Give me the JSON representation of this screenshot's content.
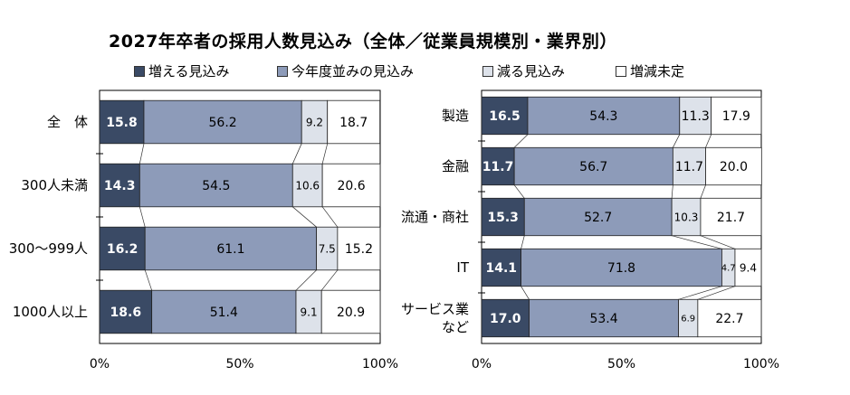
{
  "title": "2027年卒者の採用人数見込み（全体／従業員規模別・業界別）",
  "legend": [
    {
      "label": "増える見込み",
      "color": "#3a4a65"
    },
    {
      "label": "今年度並みの見込み",
      "color": "#8d9bb9"
    },
    {
      "label": "減る見込み",
      "color": "#dde2ea"
    },
    {
      "label": "増減未定",
      "color": "#ffffff"
    }
  ],
  "chart_data": [
    {
      "type": "bar",
      "orientation": "horizontal",
      "stacked": true,
      "title": "全体／従業員規模別",
      "categories": [
        "全　体",
        "300人未満",
        "300～999人",
        "1000人以上"
      ],
      "series": [
        {
          "name": "増える見込み",
          "values": [
            15.8,
            14.3,
            16.2,
            18.6
          ]
        },
        {
          "name": "今年度並みの見込み",
          "values": [
            56.2,
            54.5,
            61.1,
            51.4
          ]
        },
        {
          "name": "減る見込み",
          "values": [
            9.2,
            10.6,
            7.5,
            9.1
          ]
        },
        {
          "name": "増減未定",
          "values": [
            18.7,
            20.6,
            15.2,
            20.9
          ]
        }
      ],
      "xlim": [
        0,
        100
      ],
      "xticks": [
        "0%",
        "50%",
        "100%"
      ]
    },
    {
      "type": "bar",
      "orientation": "horizontal",
      "stacked": true,
      "title": "業界別",
      "categories": [
        "製造",
        "金融",
        "流通・商社",
        "IT",
        "サービス業\nなど"
      ],
      "series": [
        {
          "name": "増える見込み",
          "values": [
            16.5,
            11.7,
            15.3,
            14.1,
            17.0
          ]
        },
        {
          "name": "今年度並みの見込み",
          "values": [
            54.3,
            56.7,
            52.7,
            71.8,
            53.4
          ]
        },
        {
          "name": "減る見込み",
          "values": [
            11.3,
            11.7,
            10.3,
            4.7,
            6.9
          ]
        },
        {
          "name": "増減未定",
          "values": [
            17.9,
            20.0,
            21.7,
            9.4,
            22.7
          ]
        }
      ],
      "xlim": [
        0,
        100
      ],
      "xticks": [
        "0%",
        "50%",
        "100%"
      ]
    }
  ]
}
